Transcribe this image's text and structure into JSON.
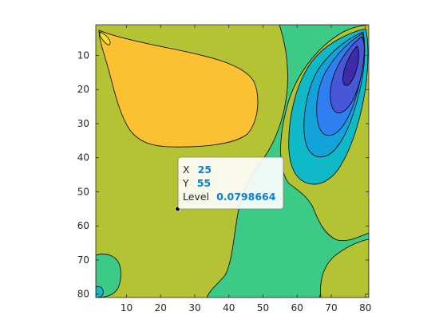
{
  "chart_data": {
    "type": "contour",
    "filled": true,
    "x_range": [
      1,
      81
    ],
    "y_range": [
      1,
      81
    ],
    "y_direction": "reverse",
    "x_ticks": [
      10,
      20,
      30,
      40,
      50,
      60,
      70,
      80
    ],
    "y_ticks": [
      10,
      20,
      30,
      40,
      50,
      60,
      70,
      80
    ],
    "x_tick_labels": [
      "10",
      "20",
      "30",
      "40",
      "50",
      "60",
      "70",
      "80"
    ],
    "y_tick_labels": [
      "10",
      "20",
      "30",
      "40",
      "50",
      "60",
      "70",
      "80"
    ],
    "grid": false,
    "colormap": "parula",
    "level_colors": [
      "#3e2ba8",
      "#4757d6",
      "#2f7ff0",
      "#13a3db",
      "#0fb9c8",
      "#3dca86",
      "#b3c334",
      "#fbc133",
      "#f7e51b"
    ],
    "regions": [
      {
        "name": "background-level",
        "color": "#b3c334"
      },
      {
        "name": "upper-left-high",
        "color": "#fbc133"
      },
      {
        "name": "upper-left-peak",
        "color": "#f7e51b"
      },
      {
        "name": "right-low-level-1",
        "color": "#3dca86"
      },
      {
        "name": "right-low-level-2",
        "color": "#0fb9c8"
      },
      {
        "name": "right-low-level-3",
        "color": "#13a3db"
      },
      {
        "name": "right-low-level-4",
        "color": "#2f7ff0"
      },
      {
        "name": "right-low-level-5",
        "color": "#4757d6"
      },
      {
        "name": "right-low-min",
        "color": "#3e2ba8"
      }
    ],
    "datatip": {
      "x": 25,
      "y": 55,
      "level": 0.0798664,
      "x_label": "X",
      "y_label": "Y",
      "level_label": "Level",
      "x_text": "25",
      "y_text": "55",
      "level_text": "0.0798664"
    }
  }
}
